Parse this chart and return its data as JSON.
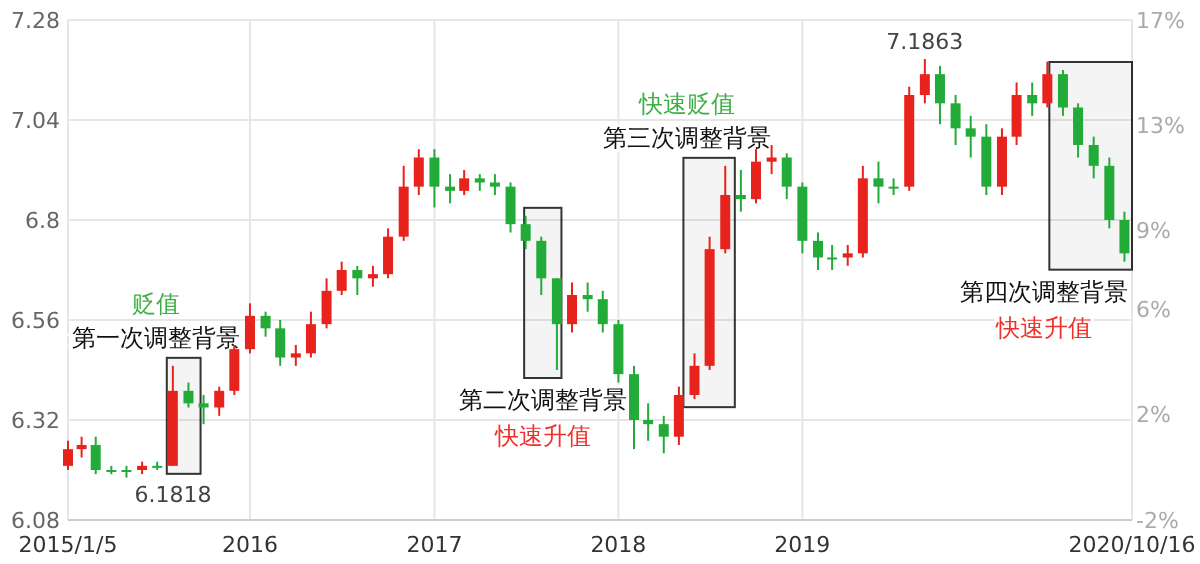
{
  "chart_data": {
    "type": "candlestick",
    "x": [
      "2015-01-05",
      "2015-02-01",
      "2015-03-01",
      "2015-04-01",
      "2015-05-01",
      "2015-06-01",
      "2015-07-01",
      "2015-08-01",
      "2015-09-01",
      "2015-10-01",
      "2015-11-01",
      "2015-12-01",
      "2016-01-01",
      "2016-02-01",
      "2016-03-01",
      "2016-04-01",
      "2016-05-01",
      "2016-06-01",
      "2016-07-01",
      "2016-08-01",
      "2016-09-01",
      "2016-10-01",
      "2016-11-01",
      "2016-12-01",
      "2017-01-01",
      "2017-02-01",
      "2017-03-01",
      "2017-04-01",
      "2017-05-01",
      "2017-06-01",
      "2017-07-01",
      "2017-08-01",
      "2017-09-01",
      "2017-10-01",
      "2017-11-01",
      "2017-12-01",
      "2018-01-01",
      "2018-02-01",
      "2018-03-01",
      "2018-04-01",
      "2018-05-01",
      "2018-06-01",
      "2018-07-01",
      "2018-08-01",
      "2018-09-01",
      "2018-10-01",
      "2018-11-01",
      "2018-12-01",
      "2019-01-01",
      "2019-02-01",
      "2019-03-01",
      "2019-04-01",
      "2019-05-01",
      "2019-06-01",
      "2019-07-01",
      "2019-08-01",
      "2019-09-01",
      "2019-10-01",
      "2019-11-01",
      "2019-12-01",
      "2020-01-01",
      "2020-02-01",
      "2020-03-01",
      "2020-04-01",
      "2020-05-01",
      "2020-06-01",
      "2020-07-01",
      "2020-08-01",
      "2020-09-01",
      "2020-10-01"
    ],
    "ohlc": [
      [
        6.21,
        6.27,
        6.2,
        6.25
      ],
      [
        6.25,
        6.28,
        6.23,
        6.26
      ],
      [
        6.26,
        6.28,
        6.19,
        6.2
      ],
      [
        6.2,
        6.21,
        6.19,
        6.2
      ],
      [
        6.2,
        6.21,
        6.1818,
        6.2
      ],
      [
        6.2,
        6.22,
        6.19,
        6.21
      ],
      [
        6.21,
        6.22,
        6.2,
        6.21
      ],
      [
        6.21,
        6.45,
        6.21,
        6.39
      ],
      [
        6.39,
        6.41,
        6.35,
        6.36
      ],
      [
        6.36,
        6.38,
        6.31,
        6.35
      ],
      [
        6.35,
        6.4,
        6.33,
        6.39
      ],
      [
        6.39,
        6.5,
        6.38,
        6.49
      ],
      [
        6.49,
        6.6,
        6.48,
        6.57
      ],
      [
        6.57,
        6.58,
        6.52,
        6.54
      ],
      [
        6.54,
        6.56,
        6.45,
        6.47
      ],
      [
        6.47,
        6.5,
        6.45,
        6.48
      ],
      [
        6.48,
        6.58,
        6.47,
        6.55
      ],
      [
        6.55,
        6.66,
        6.54,
        6.63
      ],
      [
        6.63,
        6.7,
        6.62,
        6.68
      ],
      [
        6.68,
        6.69,
        6.62,
        6.66
      ],
      [
        6.66,
        6.69,
        6.64,
        6.67
      ],
      [
        6.67,
        6.78,
        6.66,
        6.76
      ],
      [
        6.76,
        6.93,
        6.75,
        6.88
      ],
      [
        6.88,
        6.97,
        6.86,
        6.95
      ],
      [
        6.95,
        6.97,
        6.83,
        6.88
      ],
      [
        6.88,
        6.91,
        6.84,
        6.87
      ],
      [
        6.87,
        6.92,
        6.86,
        6.9
      ],
      [
        6.9,
        6.91,
        6.87,
        6.89
      ],
      [
        6.89,
        6.91,
        6.86,
        6.88
      ],
      [
        6.88,
        6.89,
        6.77,
        6.79
      ],
      [
        6.79,
        6.81,
        6.73,
        6.75
      ],
      [
        6.75,
        6.76,
        6.62,
        6.66
      ],
      [
        6.66,
        6.66,
        6.44,
        6.55
      ],
      [
        6.55,
        6.65,
        6.53,
        6.62
      ],
      [
        6.62,
        6.65,
        6.58,
        6.61
      ],
      [
        6.61,
        6.63,
        6.53,
        6.55
      ],
      [
        6.55,
        6.56,
        6.41,
        6.43
      ],
      [
        6.43,
        6.45,
        6.25,
        6.32
      ],
      [
        6.32,
        6.36,
        6.27,
        6.31
      ],
      [
        6.31,
        6.33,
        6.24,
        6.28
      ],
      [
        6.28,
        6.4,
        6.26,
        6.38
      ],
      [
        6.38,
        6.48,
        6.37,
        6.45
      ],
      [
        6.45,
        6.76,
        6.44,
        6.73
      ],
      [
        6.73,
        6.93,
        6.72,
        6.86
      ],
      [
        6.86,
        6.92,
        6.82,
        6.85
      ],
      [
        6.85,
        6.97,
        6.84,
        6.94
      ],
      [
        6.94,
        6.98,
        6.91,
        6.95
      ],
      [
        6.95,
        6.96,
        6.85,
        6.88
      ],
      [
        6.88,
        6.89,
        6.72,
        6.75
      ],
      [
        6.75,
        6.77,
        6.68,
        6.71
      ],
      [
        6.71,
        6.74,
        6.68,
        6.71
      ],
      [
        6.71,
        6.74,
        6.69,
        6.72
      ],
      [
        6.72,
        6.93,
        6.71,
        6.9
      ],
      [
        6.9,
        6.94,
        6.84,
        6.88
      ],
      [
        6.88,
        6.9,
        6.86,
        6.88
      ],
      [
        6.88,
        7.12,
        6.87,
        7.1
      ],
      [
        7.1,
        7.1863,
        7.08,
        7.15
      ],
      [
        7.15,
        7.17,
        7.03,
        7.08
      ],
      [
        7.08,
        7.1,
        6.98,
        7.02
      ],
      [
        7.02,
        7.05,
        6.95,
        7.0
      ],
      [
        7.0,
        7.03,
        6.86,
        6.88
      ],
      [
        6.88,
        7.02,
        6.86,
        7.0
      ],
      [
        7.0,
        7.13,
        6.98,
        7.1
      ],
      [
        7.1,
        7.13,
        7.05,
        7.08
      ],
      [
        7.08,
        7.18,
        7.07,
        7.15
      ],
      [
        7.15,
        7.16,
        7.05,
        7.07
      ],
      [
        7.07,
        7.08,
        6.95,
        6.98
      ],
      [
        6.98,
        7.0,
        6.9,
        6.93
      ],
      [
        6.93,
        6.95,
        6.78,
        6.8
      ],
      [
        6.8,
        6.82,
        6.7,
        6.72
      ]
    ],
    "colors": [
      "#e8221c",
      "#e8221c",
      "#22ab38",
      "#22ab38",
      "#22ab38",
      "#e8221c",
      "#22ab38",
      "#e8221c",
      "#22ab38",
      "#22ab38",
      "#e8221c",
      "#e8221c",
      "#e8221c",
      "#22ab38",
      "#22ab38",
      "#e8221c",
      "#e8221c",
      "#e8221c",
      "#e8221c",
      "#22ab38",
      "#e8221c",
      "#e8221c",
      "#e8221c",
      "#e8221c",
      "#22ab38",
      "#22ab38",
      "#e8221c",
      "#22ab38",
      "#22ab38",
      "#22ab38",
      "#22ab38",
      "#22ab38",
      "#22ab38",
      "#e8221c",
      "#22ab38",
      "#22ab38",
      "#22ab38",
      "#22ab38",
      "#22ab38",
      "#22ab38",
      "#e8221c",
      "#e8221c",
      "#e8221c",
      "#e8221c",
      "#22ab38",
      "#e8221c",
      "#e8221c",
      "#22ab38",
      "#22ab38",
      "#22ab38",
      "#22ab38",
      "#e8221c",
      "#e8221c",
      "#22ab38",
      "#22ab38",
      "#e8221c",
      "#e8221c",
      "#22ab38",
      "#22ab38",
      "#22ab38",
      "#22ab38",
      "#e8221c",
      "#e8221c",
      "#22ab38",
      "#e8221c",
      "#22ab38",
      "#22ab38",
      "#22ab38",
      "#22ab38",
      "#22ab38"
    ],
    "xlim": [
      "2015-01-05",
      "2020-10-16"
    ],
    "xticks": [
      {
        "value": "2015-01-05",
        "label": "2015/1/5"
      },
      {
        "value": "2016-01-01",
        "label": "2016"
      },
      {
        "value": "2017-01-01",
        "label": "2017"
      },
      {
        "value": "2018-01-01",
        "label": "2018"
      },
      {
        "value": "2019-01-01",
        "label": "2019"
      },
      {
        "value": "2020-10-16",
        "label": "2020/10/16"
      }
    ],
    "ylim": [
      6.08,
      7.28
    ],
    "yticks": [
      6.08,
      6.32,
      6.56,
      6.8,
      7.04,
      7.28
    ],
    "y2lim": [
      -2,
      17
    ],
    "y2ticks": [
      {
        "value": -2,
        "label": "-2%"
      },
      {
        "value": 2,
        "label": "2%"
      },
      {
        "value": 6,
        "label": "6%"
      },
      {
        "value": 9,
        "label": "9%"
      },
      {
        "value": 13,
        "label": "13%"
      },
      {
        "value": 17,
        "label": "17%"
      }
    ],
    "grid": true,
    "bands": [
      {
        "axis": "x",
        "from": "2015-07-20",
        "to": "2015-09-25",
        "label": "第一次调整背景",
        "color": "#f4f4f4"
      },
      {
        "axis": "x",
        "from": "2017-06-28",
        "to": "2017-09-10",
        "label": "第二次调整背景",
        "color": "#f4f4f4"
      },
      {
        "axis": "x",
        "from": "2018-05-10",
        "to": "2018-08-20",
        "label": "第三次调整背景",
        "color": "#f4f4f4"
      },
      {
        "axis": "x",
        "from": "2020-05-05",
        "to": "2020-10-16",
        "label": "第四次调整背景",
        "color": "#f4f4f4"
      }
    ],
    "annotations": [
      {
        "text": "6.1818",
        "x": "2015-05-01",
        "y": 6.1818
      },
      {
        "text": "7.1863",
        "x": "2019-09-01",
        "y": 7.1863
      },
      "贬值",
      "快速升值",
      "快速贬值",
      "快速升值"
    ]
  }
}
